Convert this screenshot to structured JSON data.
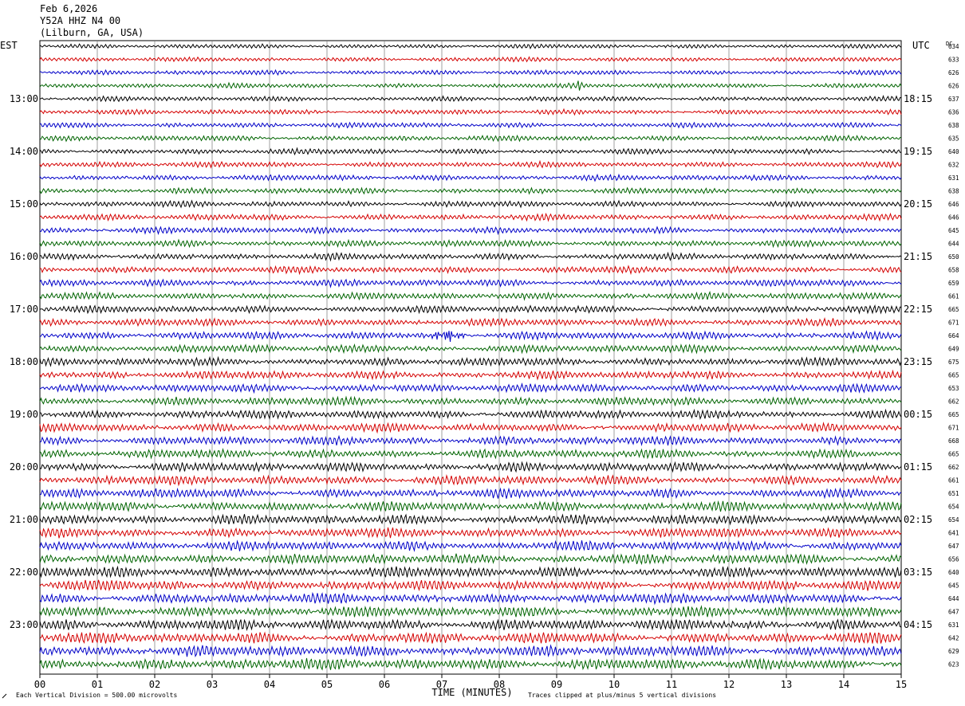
{
  "header": {
    "date": "Feb 6,2026",
    "station": "Y52A HHZ N4 00",
    "location": "(Lilburn, GA, USA)"
  },
  "chart_data": {
    "type": "line",
    "title": "Feb 6,2026 Y52A HHZ N4 00 (Lilburn, GA, USA)",
    "left_axis_label": "EST",
    "right_axis_label": "UTC",
    "dc_label": "DC",
    "xlabel": "TIME (MINUTES)",
    "xlim": [
      0,
      15
    ],
    "x_ticks": [
      "00",
      "01",
      "02",
      "03",
      "04",
      "05",
      "06",
      "07",
      "08",
      "09",
      "10",
      "11",
      "12",
      "13",
      "14",
      "15"
    ],
    "trace_colors": [
      "#000000",
      "#d40000",
      "#0000c8",
      "#006400"
    ],
    "row_minutes": 15,
    "n_traces": 48,
    "est_hour_labels": [
      "13:00",
      "14:00",
      "15:00",
      "16:00",
      "17:00",
      "18:00",
      "19:00",
      "20:00",
      "21:00",
      "22:00",
      "23:00"
    ],
    "utc_hour_labels": [
      "18:15",
      "19:15",
      "20:15",
      "21:15",
      "22:15",
      "23:15",
      "00:15",
      "01:15",
      "02:15",
      "03:15",
      "04:15"
    ],
    "dc_offsets": [
      634,
      633,
      626,
      626,
      637,
      636,
      638,
      635,
      640,
      632,
      631,
      638,
      646,
      646,
      645,
      644,
      650,
      658,
      659,
      661,
      665,
      671,
      664,
      649,
      675,
      665,
      653,
      662,
      665,
      671,
      668,
      665,
      662,
      661,
      651,
      654,
      654,
      641,
      647,
      656,
      640,
      645,
      644,
      647,
      631,
      642,
      629,
      623
    ],
    "events": [
      {
        "trace": 3,
        "minute": 9.4,
        "note": "spike"
      },
      {
        "trace": 22,
        "minute": 7.1,
        "note": "burst"
      }
    ],
    "footer_scale": "Each Vertical Division =   500.00 microvolts",
    "footer_clip": "Traces clipped at plus/minus 5 vertical divisions"
  }
}
